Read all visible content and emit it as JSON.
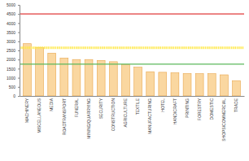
{
  "chart_data": {
    "type": "bar",
    "categories": [
      "MACHINERY",
      "MISCELLANEOUS",
      "MEDIA",
      "ROADTRANSPORT",
      "FUNERAL",
      "MINING/QUARRYING",
      "SECURITY",
      "CONSTRUCTION",
      "AGRICULTURE",
      "TEXTILE",
      "MANUFACTURING",
      "HOTEL",
      "HANDICRAFT",
      "PRINTING",
      "FORESTRY",
      "DOMESTIC",
      "SHOPS/COMMERCIAL",
      "TRADE"
    ],
    "values": [
      2870,
      2660,
      2350,
      2080,
      2000,
      2000,
      1950,
      1880,
      1720,
      1580,
      1330,
      1300,
      1270,
      1230,
      1220,
      1220,
      1160,
      840
    ],
    "color": "#fad7a0",
    "ylim": [
      0,
      5000
    ],
    "yticks": [
      0,
      500,
      1000,
      1500,
      2000,
      2500,
      3000,
      3500,
      4000,
      4500,
      5000
    ],
    "grid": false,
    "reference_lines": [
      {
        "value": 4500,
        "color": "#e03a3a",
        "line_style": "solid"
      },
      {
        "value": 2650,
        "color": "#ffe94d",
        "line_style": "dotted"
      },
      {
        "value": 1750,
        "color": "#5cb85c",
        "line_style": "solid"
      }
    ]
  }
}
